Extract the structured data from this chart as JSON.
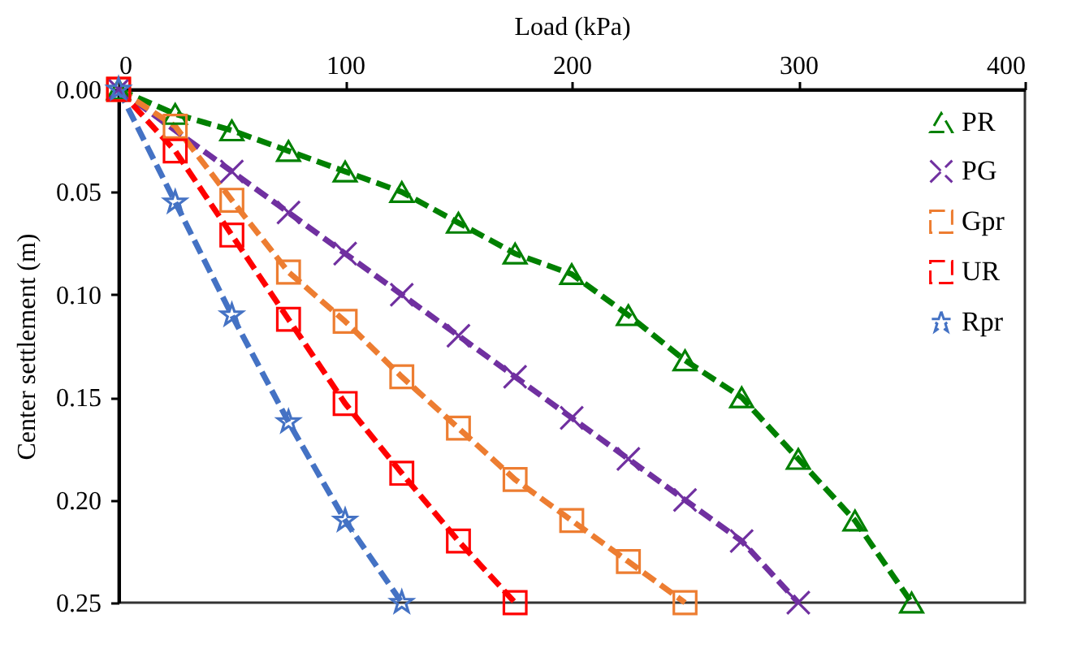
{
  "chart_data": {
    "type": "line",
    "xlabel": "Load (kPa)",
    "ylabel": "Center settlement  (m)",
    "xlim": [
      0,
      400
    ],
    "xticks": [
      0,
      100,
      200,
      300,
      400
    ],
    "ylim": [
      0.25,
      0
    ],
    "yticks": [
      {
        "value": 0,
        "label": "0.00"
      },
      {
        "value": 0.05,
        "label": "0.05"
      },
      {
        "value": 0.1,
        "label": "0.10"
      },
      {
        "value": 0.15,
        "label": "0.15"
      },
      {
        "value": 0.2,
        "label": "0.20"
      },
      {
        "value": 0.25,
        "label": "0.25"
      }
    ],
    "grid": false,
    "legend": "top right",
    "series": [
      {
        "name": "PR",
        "color": "#008000",
        "marker": "triangle",
        "line_style": "dashed",
        "x": [
          0,
          25,
          50,
          75,
          100,
          125,
          150,
          175,
          200,
          225,
          250,
          275,
          300,
          325,
          350
        ],
        "values": [
          0,
          0.012,
          0.02,
          0.03,
          0.04,
          0.05,
          0.065,
          0.08,
          0.09,
          0.11,
          0.132,
          0.15,
          0.18,
          0.21,
          0.25
        ]
      },
      {
        "name": "PG",
        "color": "#7030a0",
        "marker": "cross",
        "line_style": "dashed",
        "x": [
          0,
          50,
          75,
          100,
          125,
          150,
          175,
          200,
          225,
          250,
          275,
          300
        ],
        "values": [
          0,
          0.04,
          0.06,
          0.08,
          0.1,
          0.12,
          0.14,
          0.16,
          0.18,
          0.2,
          0.22,
          0.25
        ]
      },
      {
        "name": "Gpr",
        "color": "#ed7d31",
        "marker": "square",
        "line_style": "dashed",
        "x": [
          0,
          25,
          50,
          75,
          100,
          125,
          150,
          175,
          200,
          225,
          250
        ],
        "values": [
          0,
          0.018,
          0.054,
          0.089,
          0.113,
          0.14,
          0.165,
          0.19,
          0.21,
          0.23,
          0.25
        ]
      },
      {
        "name": "UR",
        "color": "#ff0000",
        "marker": "square",
        "line_style": "dashed",
        "x": [
          0,
          25,
          50,
          75,
          100,
          125,
          150,
          175
        ],
        "values": [
          0,
          0.03,
          0.071,
          0.112,
          0.153,
          0.187,
          0.22,
          0.25
        ]
      },
      {
        "name": "Rpr",
        "color": "#4472c4",
        "marker": "star",
        "line_style": "dashed",
        "x": [
          0,
          25,
          50,
          75,
          100,
          125
        ],
        "values": [
          0,
          0.055,
          0.11,
          0.162,
          0.21,
          0.25
        ]
      }
    ]
  }
}
